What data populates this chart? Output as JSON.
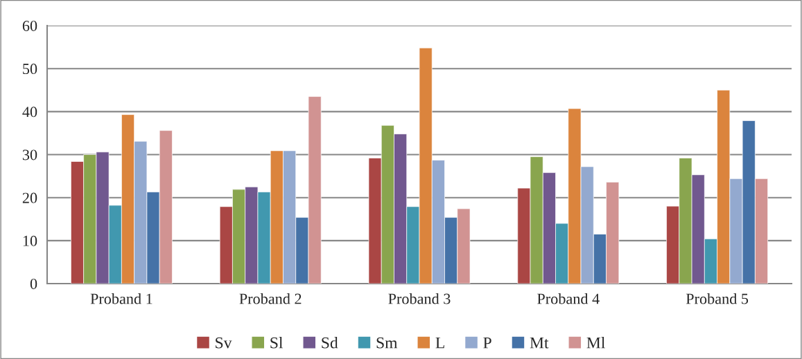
{
  "chart_data": {
    "type": "bar",
    "categories": [
      "Proband 1",
      "Proband 2",
      "Proband 3",
      "Proband 4",
      "Proband 5"
    ],
    "series": [
      {
        "name": "Sv",
        "color": "#aa4644",
        "values": [
          28.4,
          17.9,
          29.2,
          22.2,
          18.0
        ]
      },
      {
        "name": "Sl",
        "color": "#89a54e",
        "values": [
          30.0,
          21.9,
          36.8,
          29.5,
          29.2
        ]
      },
      {
        "name": "Sd",
        "color": "#71588f",
        "values": [
          30.6,
          22.5,
          34.8,
          25.8,
          25.3
        ]
      },
      {
        "name": "Sm",
        "color": "#4198af",
        "values": [
          18.2,
          21.3,
          17.9,
          14.0,
          10.4
        ]
      },
      {
        "name": "L",
        "color": "#db843d",
        "values": [
          39.3,
          30.9,
          54.8,
          40.7,
          45.0
        ]
      },
      {
        "name": "P",
        "color": "#93a9cf",
        "values": [
          33.1,
          30.9,
          28.7,
          27.2,
          24.4
        ]
      },
      {
        "name": "Mt",
        "color": "#4572a7",
        "values": [
          21.3,
          15.4,
          15.4,
          11.5,
          37.9
        ]
      },
      {
        "name": "Ml",
        "color": "#d19392",
        "values": [
          35.6,
          43.5,
          17.4,
          23.6,
          24.4
        ]
      }
    ],
    "ylim": [
      0,
      60
    ],
    "yticks": [
      0,
      10,
      20,
      30,
      40,
      50,
      60
    ],
    "grid": "y",
    "legend": "bottom"
  }
}
